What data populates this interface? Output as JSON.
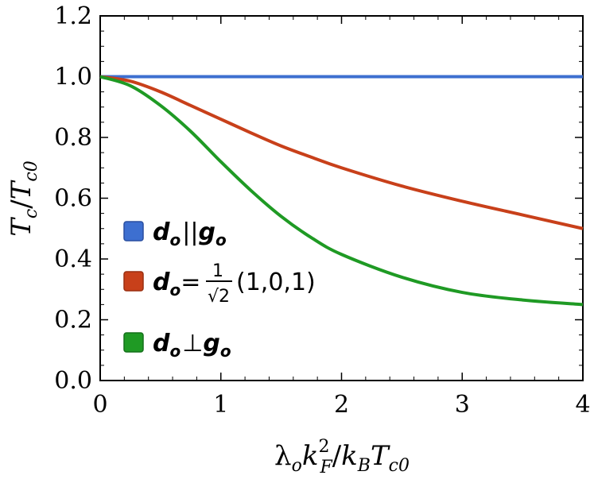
{
  "chart_data": {
    "type": "line",
    "xlabel": {
      "base": "λ",
      "o_sub": "o",
      "k": "k",
      "sup2": "2",
      "F_sub": "F",
      "slash": "/",
      "kB_k": "k",
      "B_sub": "B",
      "T": "T",
      "c0_sub": "c0"
    },
    "ylabel": {
      "T": "T",
      "c_sub": "c",
      "slash": "/",
      "T2": "T",
      "c0_sub": "c0"
    },
    "xlim": [
      0,
      4
    ],
    "ylim": [
      0,
      1.2
    ],
    "x_ticks": [
      "0",
      "1",
      "2",
      "3",
      "4"
    ],
    "y_ticks": [
      "0.0",
      "0.2",
      "0.4",
      "0.6",
      "0.8",
      "1.0",
      "1.2"
    ],
    "series": [
      {
        "name": "d_o || g_o",
        "color": "#3d6fd0",
        "x": [
          0,
          0.5,
          1,
          1.5,
          2,
          2.5,
          3,
          3.5,
          4
        ],
        "y": [
          1.0,
          1.0,
          1.0,
          1.0,
          1.0,
          1.0,
          1.0,
          1.0,
          1.0
        ]
      },
      {
        "name": "d_o = 1/√2 (1,0,1)",
        "color": "#c8401a",
        "x": [
          0,
          0.25,
          0.5,
          0.75,
          1.0,
          1.25,
          1.5,
          1.75,
          2.0,
          2.5,
          3.0,
          3.5,
          4.0
        ],
        "y": [
          1.0,
          0.985,
          0.95,
          0.905,
          0.86,
          0.815,
          0.772,
          0.735,
          0.7,
          0.64,
          0.59,
          0.545,
          0.5
        ]
      },
      {
        "name": "d_o ⊥ g_o",
        "color": "#1f9a24",
        "x": [
          0,
          0.25,
          0.5,
          0.75,
          1.0,
          1.25,
          1.5,
          1.75,
          2.0,
          2.5,
          3.0,
          3.5,
          4.0
        ],
        "y": [
          1.0,
          0.97,
          0.905,
          0.82,
          0.72,
          0.625,
          0.54,
          0.47,
          0.415,
          0.34,
          0.29,
          0.265,
          0.25
        ]
      }
    ],
    "legend": {
      "placement": "lower-left",
      "items": [
        {
          "d": "d",
          "o": "o",
          "rel": "||",
          "g": "g",
          "o2": "o"
        },
        {
          "d": "d",
          "o": "o",
          "eq": "=",
          "num": "1",
          "den": "√2",
          "vec": "(1,0,1)"
        },
        {
          "d": "d",
          "o": "o",
          "rel": "⊥",
          "g": "g",
          "o2": "o"
        }
      ]
    },
    "grid": false
  }
}
